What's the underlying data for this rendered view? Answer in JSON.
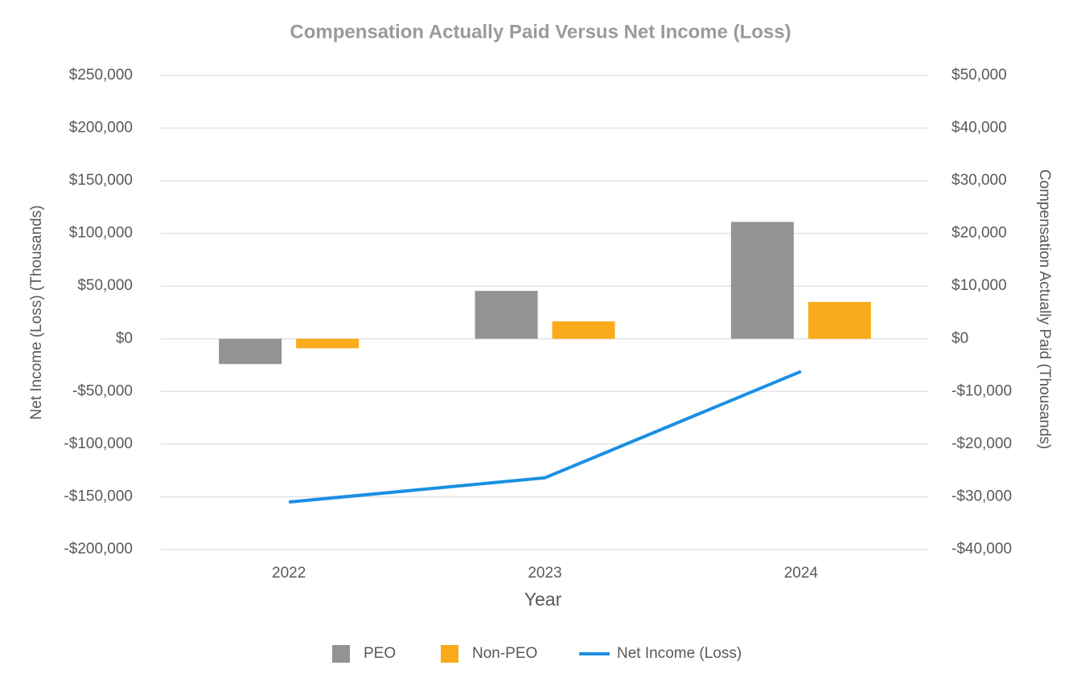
{
  "chart_data": {
    "type": "bar",
    "title": "Compensation Actually Paid Versus Net Income (Loss)",
    "xlabel": "Year",
    "ylabel": "Net Income (Loss) (Thousands)",
    "y2label": "Compensation Actually Paid (Thousands)",
    "categories": [
      "2022",
      "2023",
      "2024"
    ],
    "series": [
      {
        "name": "PEO",
        "type": "bar",
        "axis": "y2",
        "color": "#939393",
        "values": [
          -4800,
          9100,
          22200
        ]
      },
      {
        "name": "Non-PEO",
        "type": "bar",
        "axis": "y2",
        "color": "#f9ab1b",
        "values": [
          -1800,
          3300,
          7000
        ]
      },
      {
        "name": "Net Income (Loss)",
        "type": "line",
        "axis": "y",
        "color": "#1a8fe3",
        "values": [
          -155000,
          -132000,
          -31000
        ]
      }
    ],
    "ylim": [
      -200000,
      250000
    ],
    "yticks": [
      {
        "value": -200000,
        "label": "-$200,000"
      },
      {
        "value": -150000,
        "label": "-$150,000"
      },
      {
        "value": -100000,
        "label": "-$100,000"
      },
      {
        "value": -50000,
        "label": "-$50,000"
      },
      {
        "value": 0,
        "label": "$0"
      },
      {
        "value": 50000,
        "label": "$50,000"
      },
      {
        "value": 100000,
        "label": "$100,000"
      },
      {
        "value": 150000,
        "label": "$150,000"
      },
      {
        "value": 200000,
        "label": "$200,000"
      },
      {
        "value": 250000,
        "label": "$250,000"
      }
    ],
    "y2lim": [
      -40000,
      50000
    ],
    "y2ticks": [
      {
        "value": -40000,
        "label": "-$40,000"
      },
      {
        "value": -30000,
        "label": "-$30,000"
      },
      {
        "value": -20000,
        "label": "-$20,000"
      },
      {
        "value": -10000,
        "label": "-$10,000"
      },
      {
        "value": 0,
        "label": "$0"
      },
      {
        "value": 10000,
        "label": "$10,000"
      },
      {
        "value": 20000,
        "label": "$20,000"
      },
      {
        "value": 30000,
        "label": "$30,000"
      },
      {
        "value": 40000,
        "label": "$40,000"
      },
      {
        "value": 50000,
        "label": "$50,000"
      }
    ],
    "grid": true,
    "legend": "bottom"
  }
}
